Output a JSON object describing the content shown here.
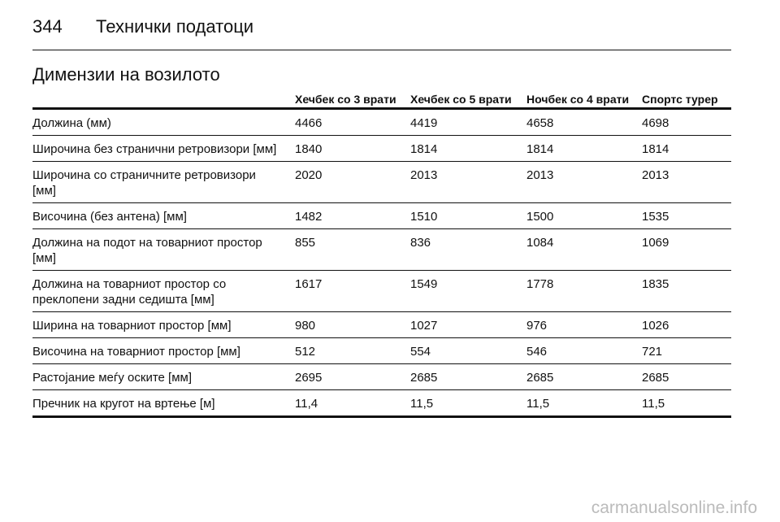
{
  "header": {
    "page_number": "344",
    "title": "Технички податоци"
  },
  "section": {
    "title": "Димензии на возилото"
  },
  "table": {
    "columns": [
      "Хечбек со 3 врати",
      "Хечбек со 5 врати",
      "Ночбек со 4 врати",
      "Спортс турер"
    ],
    "rows": [
      {
        "label": [
          "Должина (мм)"
        ],
        "values": [
          "4466",
          "4419",
          "4658",
          "4698"
        ]
      },
      {
        "label": [
          "Широчина без странични ретровизори [мм]"
        ],
        "values": [
          "1840",
          "1814",
          "1814",
          "1814"
        ]
      },
      {
        "label": [
          "Широчина со страничните ретровизори",
          "[мм]"
        ],
        "values": [
          "2020",
          "2013",
          "2013",
          "2013"
        ]
      },
      {
        "label": [
          "Височина (без антена) [мм]"
        ],
        "values": [
          "1482",
          "1510",
          "1500",
          "1535"
        ]
      },
      {
        "label": [
          "Должина на подот на товарниот простор",
          "[мм]"
        ],
        "values": [
          "855",
          "836",
          "1084",
          "1069"
        ]
      },
      {
        "label": [
          "Должина на товарниот простор со",
          "преклопени задни седишта [мм]"
        ],
        "values": [
          "1617",
          "1549",
          "1778",
          "1835"
        ]
      },
      {
        "label": [
          "Ширина на товарниот простор [мм]"
        ],
        "values": [
          "980",
          "1027",
          "976",
          "1026"
        ]
      },
      {
        "label": [
          "Височина на товарниот простор [мм]"
        ],
        "values": [
          "512",
          "554",
          "546",
          "721"
        ]
      },
      {
        "label": [
          "Растојание меѓу оските [мм]"
        ],
        "values": [
          "2695",
          "2685",
          "2685",
          "2685"
        ]
      },
      {
        "label": [
          "Пречник на кругот на вртење [м]"
        ],
        "values": [
          "11,4",
          "11,5",
          "11,5",
          "11,5"
        ]
      }
    ]
  },
  "watermark": "carmanualsonline.info"
}
